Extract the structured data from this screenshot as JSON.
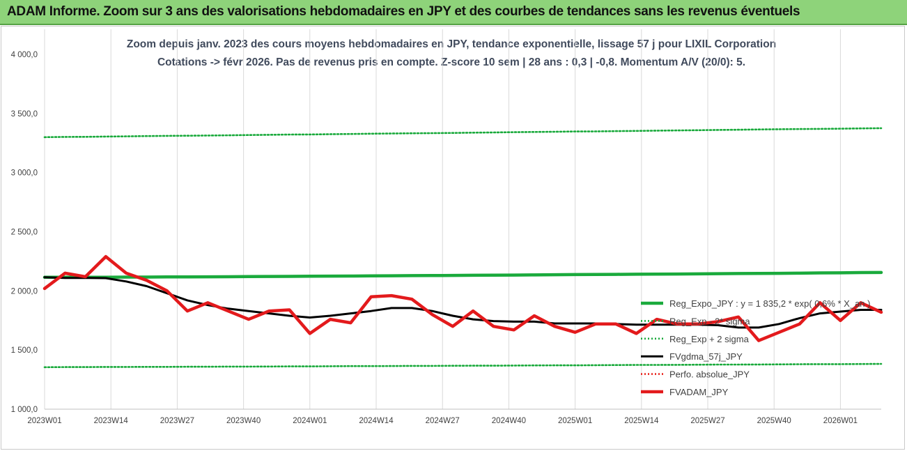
{
  "banner": {
    "title": "ADAM Informe. Zoom sur 3 ans des valorisations hebdomadaires en JPY et des courbes de tendances sans les revenus éventuels",
    "color": "#8ed37a"
  },
  "chart_data": {
    "type": "line",
    "title": "Zoom depuis janv. 2023 des cours moyens hebdomadaires en JPY, tendance exponentielle, lissage 57 j pour LIXIL Corporation",
    "subtitle": "Cotations -> févr 2026. Pas de revenus pris en compte. Z-score 10 sem | 28 ans : 0,3 | -0,8. Momentum A/V (20/0): 5.",
    "xlabel": "",
    "ylabel": "",
    "ylim": [
      1000,
      4000
    ],
    "yticks": [
      "1 000,0",
      "1 500,0",
      "2 000,0",
      "2 500,0",
      "3 000,0",
      "3 500,0",
      "4 000,0"
    ],
    "xticks": [
      "2023W01",
      "2023W14",
      "2023W27",
      "2023W40",
      "2024W01",
      "2024W14",
      "2024W27",
      "2024W40",
      "2025W01",
      "2025W14",
      "2025W27",
      "2025W40",
      "2026W01"
    ],
    "grid": "vertical",
    "legend_position": "right",
    "x_weeks": [
      0,
      4,
      8,
      12,
      16,
      20,
      24,
      28,
      32,
      36,
      40,
      44,
      48,
      52,
      56,
      60,
      64,
      68,
      72,
      76,
      80,
      84,
      88,
      92,
      96,
      100,
      104,
      108,
      112,
      116,
      120,
      124,
      128,
      132,
      136,
      140,
      144,
      148,
      152,
      156,
      160,
      164
    ],
    "series": [
      {
        "name": "Reg_Expo_JPY : y = 1 835,2 * exp( 0,6% * X_an )",
        "color": "#1aaa3c",
        "style": "solid-thick",
        "values": [
          2115,
          2115,
          2116,
          2116,
          2117,
          2117,
          2118,
          2118,
          2119,
          2120,
          2121,
          2122,
          2123,
          2124,
          2125,
          2126,
          2127,
          2128,
          2129,
          2130,
          2131,
          2132,
          2133,
          2134,
          2135,
          2137,
          2138,
          2139,
          2140,
          2141,
          2142,
          2143,
          2144,
          2146,
          2147,
          2148,
          2149,
          2150,
          2152,
          2153,
          2155,
          2156
        ]
      },
      {
        "name": "Reg_Exp - 2* sigma",
        "color": "#1aaa3c",
        "style": "dotted",
        "values": [
          1355,
          1356,
          1356,
          1357,
          1357,
          1358,
          1358,
          1359,
          1359,
          1360,
          1360,
          1361,
          1362,
          1362,
          1363,
          1364,
          1364,
          1365,
          1366,
          1366,
          1367,
          1368,
          1368,
          1369,
          1370,
          1371,
          1371,
          1372,
          1373,
          1374,
          1374,
          1375,
          1376,
          1377,
          1377,
          1378,
          1379,
          1380,
          1381,
          1381,
          1382,
          1383
        ]
      },
      {
        "name": "Reg_Exp + 2 sigma",
        "color": "#1aaa3c",
        "style": "dotted",
        "values": [
          3300,
          3302,
          3303,
          3305,
          3307,
          3309,
          3311,
          3312,
          3314,
          3316,
          3318,
          3320,
          3322,
          3323,
          3325,
          3327,
          3329,
          3331,
          3333,
          3334,
          3336,
          3338,
          3340,
          3342,
          3344,
          3346,
          3348,
          3349,
          3351,
          3353,
          3355,
          3357,
          3359,
          3361,
          3363,
          3365,
          3367,
          3369,
          3370,
          3372,
          3374,
          3376
        ]
      },
      {
        "name": "FVgdma_57j_JPY",
        "color": "#000000",
        "style": "solid",
        "values": [
          2115,
          2110,
          2110,
          2108,
          2080,
          2040,
          1980,
          1920,
          1880,
          1850,
          1830,
          1810,
          1790,
          1775,
          1790,
          1810,
          1830,
          1855,
          1855,
          1830,
          1790,
          1760,
          1745,
          1740,
          1740,
          1725,
          1725,
          1725,
          1720,
          1715,
          1715,
          1715,
          1715,
          1710,
          1690,
          1690,
          1720,
          1770,
          1810,
          1825,
          1840,
          1840
        ]
      },
      {
        "name": "Perfo. absolue_JPY",
        "color": "#e8231c",
        "style": "dotted",
        "values": []
      },
      {
        "name": "FVADAM_JPY",
        "color": "#e31a1c",
        "style": "solid-thick",
        "values": [
          2020,
          2150,
          2120,
          2290,
          2150,
          2090,
          2000,
          1830,
          1900,
          1830,
          1760,
          1830,
          1840,
          1640,
          1760,
          1730,
          1950,
          1960,
          1930,
          1800,
          1700,
          1830,
          1700,
          1670,
          1790,
          1700,
          1650,
          1720,
          1720,
          1640,
          1760,
          1720,
          1720,
          1740,
          1780,
          1580,
          1650,
          1720,
          1900,
          1750,
          1900,
          1820
        ]
      }
    ]
  }
}
